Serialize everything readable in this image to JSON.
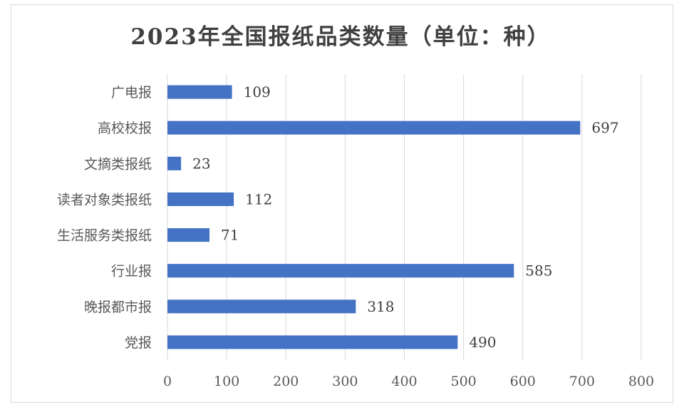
{
  "chart_data": {
    "type": "bar",
    "orientation": "horizontal",
    "title": "2023年全国报纸品类数量（单位：种）",
    "categories": [
      "广电报",
      "高校校报",
      "文摘类报纸",
      "读者对象类报纸",
      "生活服务类报纸",
      "行业报",
      "晚报都市报",
      "党报"
    ],
    "values": [
      109,
      697,
      23,
      112,
      71,
      585,
      318,
      490
    ],
    "xlim": [
      0,
      800
    ],
    "xticks": [
      0,
      100,
      200,
      300,
      400,
      500,
      600,
      700,
      800
    ],
    "grid": true,
    "legend": false,
    "bar_color": "#4472c4"
  }
}
